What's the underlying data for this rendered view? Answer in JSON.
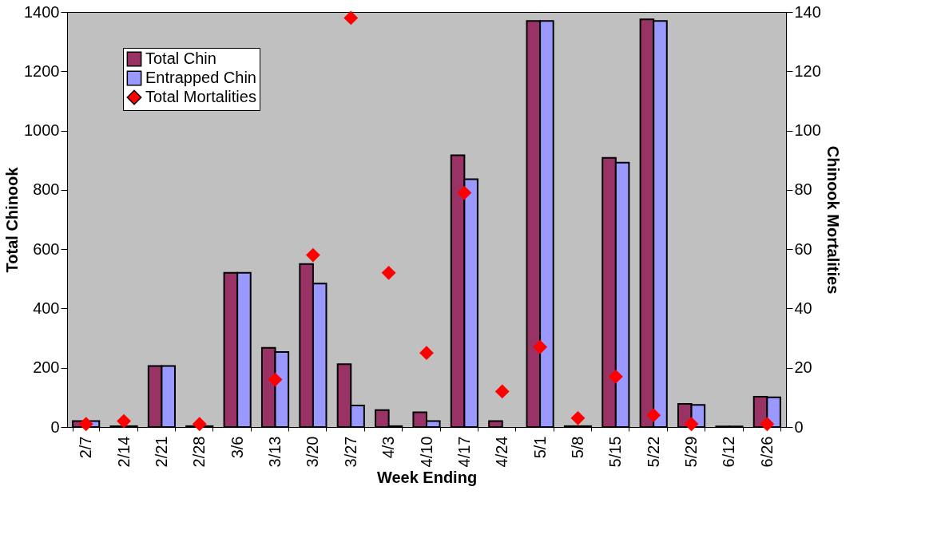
{
  "chart_data": {
    "type": "bar",
    "xlabel": "Week Ending",
    "ylabel": "Total Chinook",
    "y2label": "Chinook Mortalities",
    "categories": [
      "2/7",
      "2/14",
      "2/21",
      "2/28",
      "3/6",
      "3/13",
      "3/20",
      "3/27",
      "4/3",
      "4/10",
      "4/17",
      "4/24",
      "5/1",
      "5/8",
      "5/15",
      "5/22",
      "5/29",
      "6/12",
      "6/26"
    ],
    "series": [
      {
        "name": "Total Chin",
        "color": "#993366",
        "values": [
          20,
          3,
          206,
          3,
          520,
          267,
          550,
          212,
          57,
          50,
          917,
          20,
          1370,
          3,
          908,
          1375,
          78,
          2,
          102
        ]
      },
      {
        "name": "Entrapped Chin",
        "color": "#9999ff",
        "values": [
          20,
          3,
          206,
          3,
          520,
          253,
          484,
          73,
          3,
          20,
          836,
          null,
          1370,
          3,
          892,
          1370,
          75,
          2,
          100
        ]
      },
      {
        "name": "Total Mortalities",
        "color": "#ff0000",
        "type": "scatter",
        "axis": "y2",
        "marker": "diamond",
        "values": [
          1,
          2,
          null,
          1,
          null,
          16,
          58,
          138,
          52,
          25,
          79,
          12,
          27,
          3,
          17,
          4,
          1,
          null,
          1
        ]
      }
    ],
    "ylim": [
      0,
      1400
    ],
    "yticks": [
      0,
      200,
      400,
      600,
      800,
      {
        "value": 1000,
        "label": "1000"
      },
      {
        "value": 1200,
        "label": "1200"
      },
      {
        "value": 1400,
        "label": "1400"
      }
    ],
    "y2lim": [
      0,
      140
    ],
    "y2ticks": [
      0,
      20,
      40,
      60,
      80,
      100,
      120,
      140
    ],
    "grid": false,
    "legend": "top left"
  }
}
